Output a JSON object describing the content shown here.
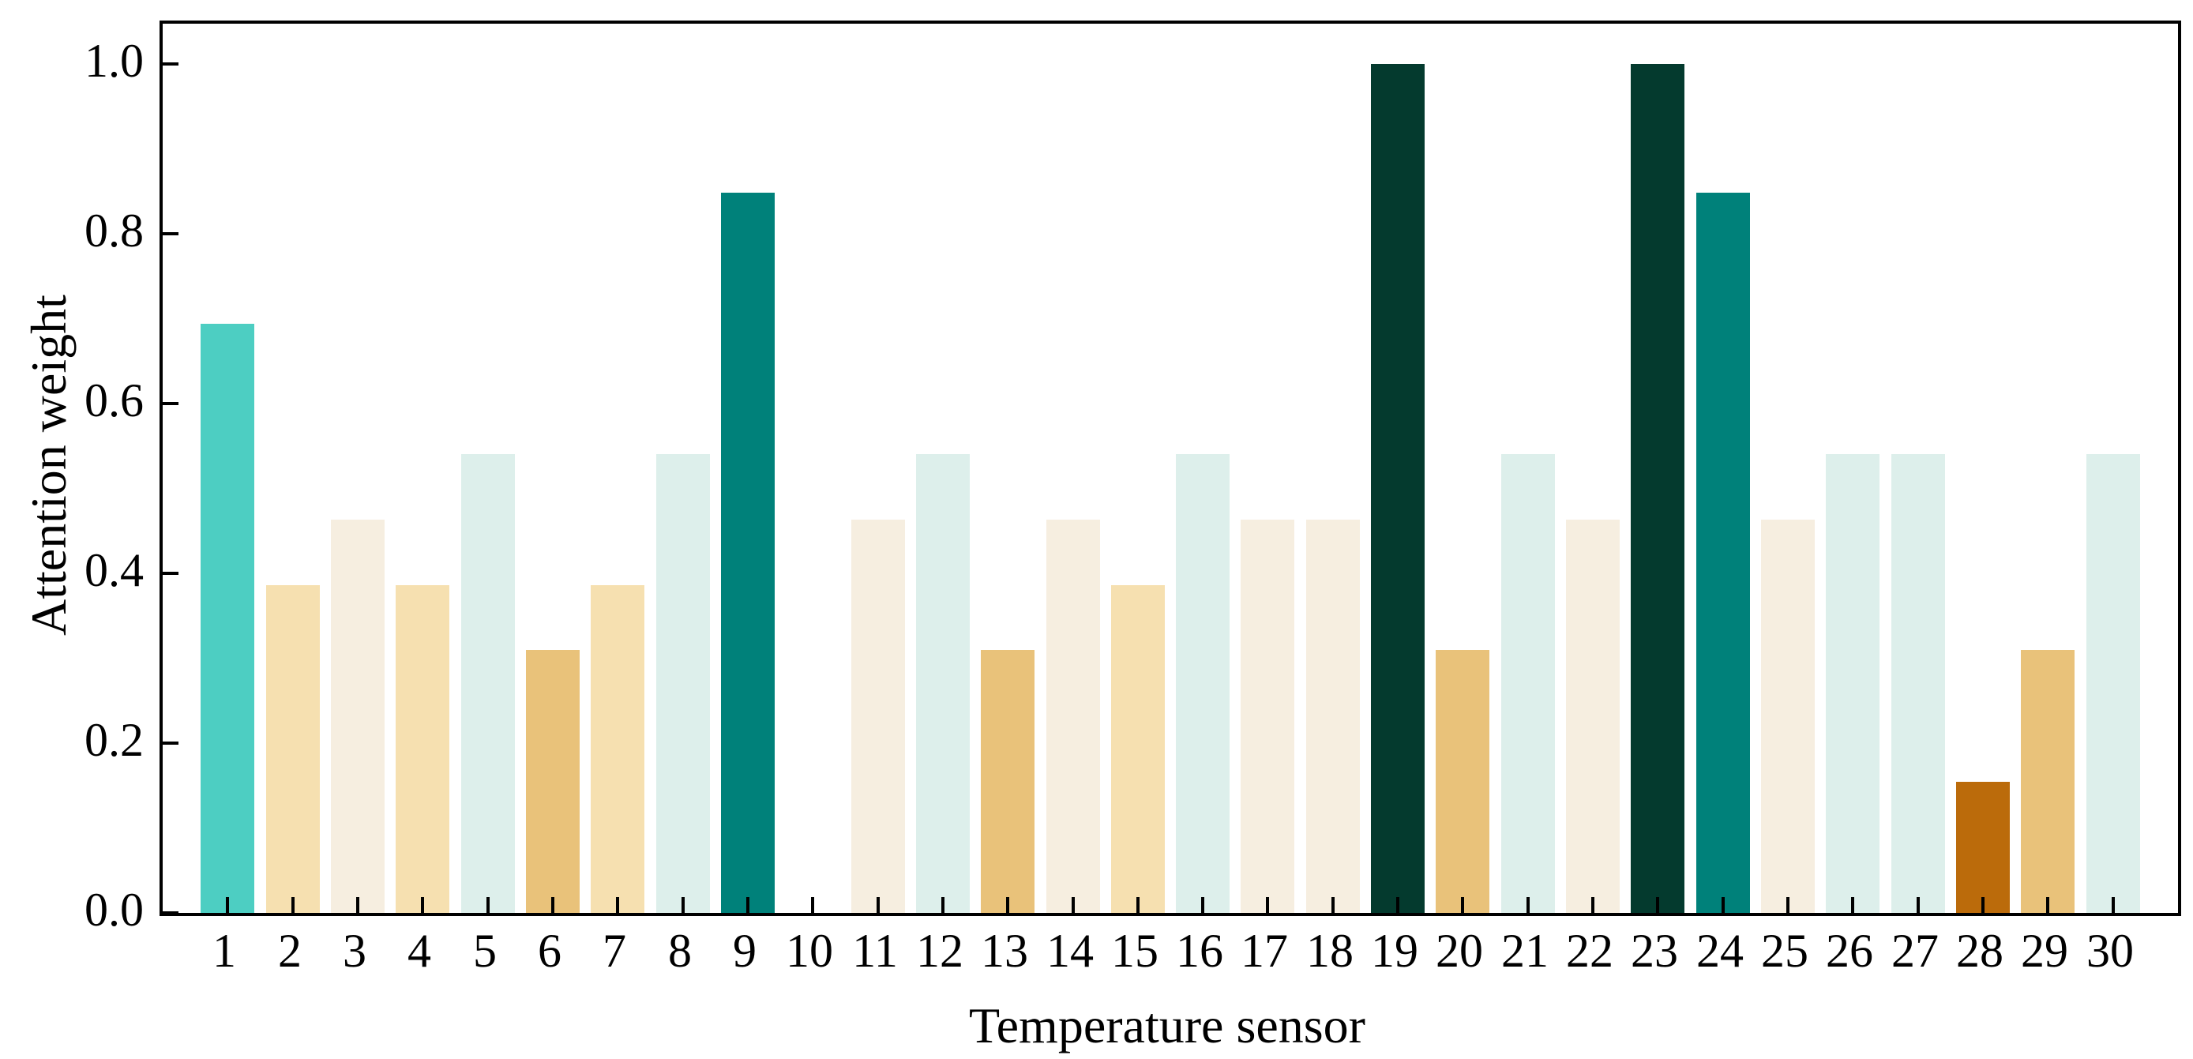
{
  "chart_data": {
    "type": "bar",
    "title": "",
    "xlabel": "Temperature sensor",
    "ylabel": "Attention weight",
    "categories": [
      "1",
      "2",
      "3",
      "4",
      "5",
      "6",
      "7",
      "8",
      "9",
      "10",
      "11",
      "12",
      "13",
      "14",
      "15",
      "16",
      "17",
      "18",
      "19",
      "20",
      "21",
      "22",
      "23",
      "24",
      "25",
      "26",
      "27",
      "28",
      "29",
      "30"
    ],
    "values": [
      0.694,
      0.386,
      0.463,
      0.386,
      0.54,
      0.31,
      0.386,
      0.54,
      0.848,
      0.0,
      0.463,
      0.54,
      0.31,
      0.463,
      0.386,
      0.54,
      0.463,
      0.463,
      1.0,
      0.31,
      0.54,
      0.463,
      1.0,
      0.848,
      0.463,
      0.54,
      0.54,
      0.154,
      0.31,
      0.54
    ],
    "bar_colors": [
      "#4dcec2",
      "#f6e0b0",
      "#f6eee0",
      "#f6e0b0",
      "#ddefeb",
      "#e9c27a",
      "#f6e0b0",
      "#ddefeb",
      "#00817a",
      "#ffffff",
      "#f6eee0",
      "#ddefeb",
      "#e9c27a",
      "#f6eee0",
      "#f6e0b0",
      "#ddefeb",
      "#f6eee0",
      "#f6eee0",
      "#043a2e",
      "#e9c27a",
      "#ddefeb",
      "#f6eee0",
      "#043a2e",
      "#00817a",
      "#f6eee0",
      "#ddefeb",
      "#ddefeb",
      "#bb6b0b",
      "#e9c27a",
      "#ddefeb"
    ],
    "y_ticks": [
      0.0,
      0.2,
      0.4,
      0.6,
      0.8,
      1.0
    ],
    "y_tick_labels": [
      "0.0",
      "0.2",
      "0.4",
      "0.6",
      "0.8",
      "1.0"
    ],
    "ylim": [
      0,
      1.047
    ],
    "xlim": [
      0,
      31
    ],
    "bar_width_units": 0.83,
    "grid": false,
    "legend_position": "none",
    "axis_color": "#000000",
    "background": "#ffffff"
  }
}
